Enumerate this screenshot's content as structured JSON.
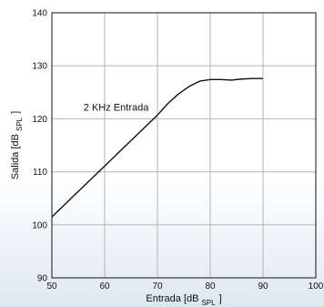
{
  "chart_data": {
    "type": "line",
    "xlabel": "Entrada [dB",
    "xlabel_sub": "SPL",
    "xlabel_close": "]",
    "ylabel": "Salida [dB",
    "ylabel_sub": "SPL",
    "ylabel_close": "]",
    "xlim": [
      50,
      100
    ],
    "ylim": [
      90,
      140
    ],
    "xticks": [
      50,
      60,
      70,
      80,
      90,
      100
    ],
    "yticks": [
      90,
      100,
      110,
      120,
      130,
      140
    ],
    "grid": true,
    "annotations": [
      {
        "text": "2 KHz Entrada",
        "x": 56,
        "y": 121.5
      }
    ],
    "series": [
      {
        "name": "",
        "color": "#111111",
        "x": [
          50,
          55,
          60,
          65,
          70,
          72,
          74,
          76,
          78,
          80,
          82,
          84,
          86,
          88,
          90
        ],
        "y": [
          101.5,
          106.3,
          111.1,
          115.9,
          120.7,
          122.9,
          124.7,
          126.1,
          127.1,
          127.4,
          127.4,
          127.3,
          127.5,
          127.6,
          127.6
        ]
      }
    ]
  }
}
